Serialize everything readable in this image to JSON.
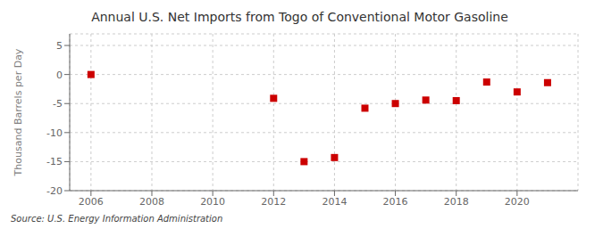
{
  "chart_data": {
    "type": "scatter",
    "title": "Annual U.S. Net Imports from Togo of Conventional Motor Gasoline",
    "ylabel": "Thousand Barrels per Day",
    "annotation": "Source: U.S. Energy Information Administration",
    "x": [
      2006,
      2012,
      2013,
      2014,
      2015,
      2016,
      2017,
      2018,
      2019,
      2020,
      2021
    ],
    "values": [
      0,
      -4.1,
      -15.0,
      -14.3,
      -5.8,
      -5.0,
      -4.4,
      -4.5,
      -1.3,
      -3.0,
      -1.4
    ],
    "color": "#cc0000",
    "marker": "square",
    "xlim": [
      2005.3,
      2022.0
    ],
    "ylim": [
      -20,
      7
    ],
    "xticks": [
      2006,
      2008,
      2010,
      2012,
      2014,
      2016,
      2018,
      2020
    ],
    "yticks": [
      -20,
      -15,
      -10,
      -5,
      0,
      5
    ],
    "grid": true
  }
}
